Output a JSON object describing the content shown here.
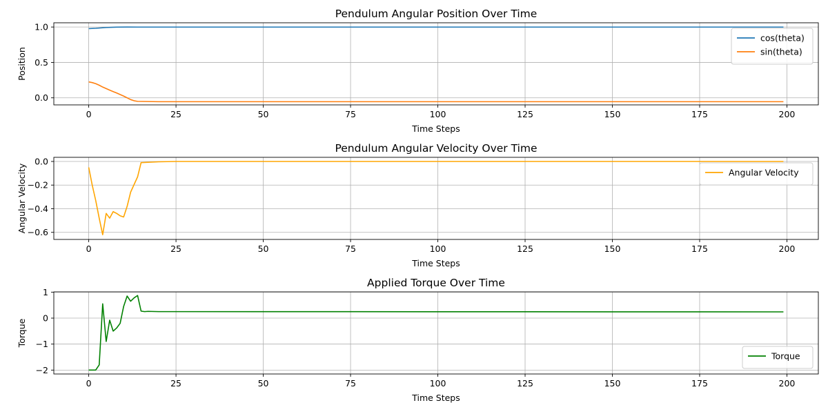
{
  "chart_data": [
    {
      "type": "line",
      "title": "Pendulum Angular Position Over Time",
      "xlabel": "Time Steps",
      "ylabel": "Position",
      "xlim": [
        -10,
        209
      ],
      "ylim": [
        -0.1,
        1.06
      ],
      "xticks": [
        0,
        25,
        50,
        75,
        100,
        125,
        150,
        175,
        200
      ],
      "yticks": [
        0.0,
        0.5,
        1.0
      ],
      "ytick_labels": [
        "0.0",
        "0.5",
        "1.0"
      ],
      "grid": true,
      "legend_position": "upper-right",
      "series": [
        {
          "name": "cos(theta)",
          "color": "#1f77b4",
          "points": [
            [
              0,
              0.977
            ],
            [
              2,
              0.982
            ],
            [
              5,
              0.993
            ],
            [
              8,
              0.998
            ],
            [
              11,
              1.0
            ],
            [
              14,
              0.999
            ],
            [
              199,
              0.999
            ]
          ]
        },
        {
          "name": "sin(theta)",
          "color": "#ff7f0e",
          "points": [
            [
              0,
              0.225
            ],
            [
              1,
              0.215
            ],
            [
              2,
              0.2
            ],
            [
              3,
              0.178
            ],
            [
              4,
              0.152
            ],
            [
              5,
              0.13
            ],
            [
              6,
              0.108
            ],
            [
              7,
              0.088
            ],
            [
              8,
              0.068
            ],
            [
              9,
              0.046
            ],
            [
              10,
              0.024
            ],
            [
              11,
              0.0
            ],
            [
              12,
              -0.025
            ],
            [
              13,
              -0.042
            ],
            [
              14,
              -0.05
            ],
            [
              20,
              -0.055
            ],
            [
              199,
              -0.055
            ]
          ]
        }
      ]
    },
    {
      "type": "line",
      "title": "Pendulum Angular Velocity Over Time",
      "xlabel": "Time Steps",
      "ylabel": "Angular Velocity",
      "xlim": [
        -10,
        209
      ],
      "ylim": [
        -0.66,
        0.035
      ],
      "xticks": [
        0,
        25,
        50,
        75,
        100,
        125,
        150,
        175,
        200
      ],
      "yticks": [
        -0.6,
        -0.4,
        -0.2,
        0.0
      ],
      "ytick_labels": [
        "−0.6",
        "−0.4",
        "−0.2",
        "0.0"
      ],
      "grid": true,
      "legend_position": "upper-right",
      "series": [
        {
          "name": "Angular Velocity",
          "color": "#ffa500",
          "points": [
            [
              0,
              -0.05
            ],
            [
              1,
              -0.2
            ],
            [
              2,
              -0.33
            ],
            [
              3,
              -0.48
            ],
            [
              4,
              -0.62
            ],
            [
              5,
              -0.44
            ],
            [
              6,
              -0.48
            ],
            [
              7,
              -0.425
            ],
            [
              8,
              -0.44
            ],
            [
              9,
              -0.46
            ],
            [
              10,
              -0.47
            ],
            [
              11,
              -0.38
            ],
            [
              12,
              -0.26
            ],
            [
              14,
              -0.13
            ],
            [
              15,
              -0.01
            ],
            [
              20,
              -0.003
            ],
            [
              25,
              0.0
            ],
            [
              199,
              0.0
            ]
          ]
        }
      ]
    },
    {
      "type": "line",
      "title": "Applied Torque Over Time",
      "xlabel": "Time Steps",
      "ylabel": "Torque",
      "xlim": [
        -10,
        209
      ],
      "ylim": [
        -2.15,
        1.01
      ],
      "xticks": [
        0,
        25,
        50,
        75,
        100,
        125,
        150,
        175,
        200
      ],
      "yticks": [
        -2,
        -1,
        0,
        1
      ],
      "ytick_labels": [
        "−2",
        "−1",
        "0",
        "1"
      ],
      "grid": true,
      "legend_position": "lower-right",
      "series": [
        {
          "name": "Torque",
          "color": "#008000",
          "points": [
            [
              0,
              -2.0
            ],
            [
              1,
              -2.0
            ],
            [
              2,
              -2.0
            ],
            [
              3,
              -1.8
            ],
            [
              4,
              0.55
            ],
            [
              5,
              -0.9
            ],
            [
              6,
              -0.08
            ],
            [
              7,
              -0.5
            ],
            [
              8,
              -0.38
            ],
            [
              9,
              -0.2
            ],
            [
              10,
              0.45
            ],
            [
              11,
              0.85
            ],
            [
              12,
              0.65
            ],
            [
              13,
              0.78
            ],
            [
              14,
              0.87
            ],
            [
              15,
              0.27
            ],
            [
              16,
              0.25
            ],
            [
              17,
              0.26
            ],
            [
              20,
              0.25
            ],
            [
              199,
              0.24
            ]
          ]
        }
      ]
    }
  ]
}
